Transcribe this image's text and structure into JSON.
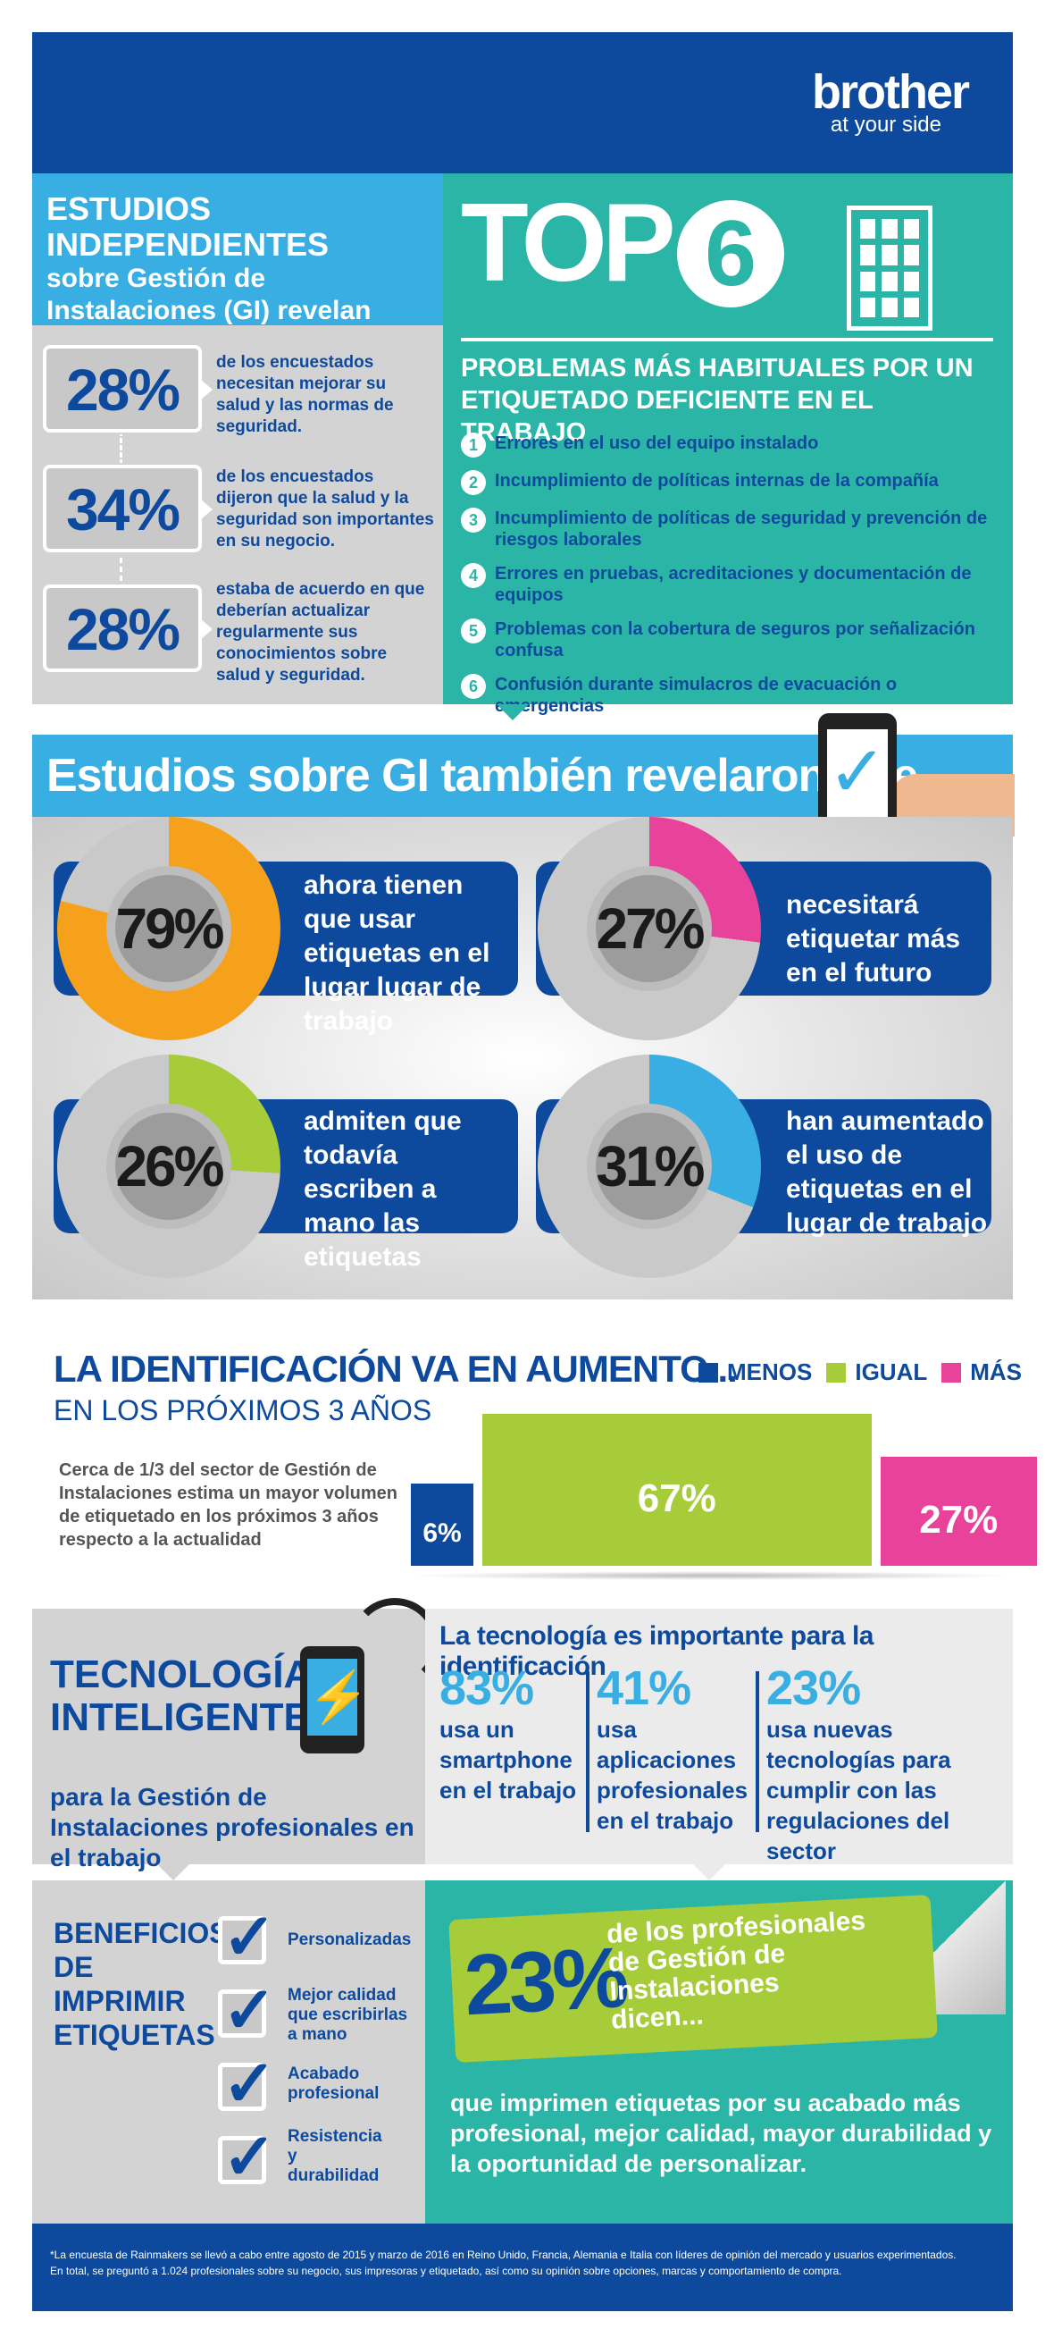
{
  "header": {
    "brand": "brother",
    "tagline": "at your side"
  },
  "studies": {
    "title_line1": "ESTUDIOS INDEPENDIENTES",
    "title_line2": "sobre Gestión de Instalaciones (GI) revelan que...",
    "stats": [
      {
        "value": "28%",
        "text": "de los encuestados necesitan mejorar su salud y las normas de seguridad."
      },
      {
        "value": "34%",
        "text": "de los encuestados dijeron que la salud y la seguridad son importantes en su negocio."
      },
      {
        "value": "28%",
        "text": "estaba de acuerdo en que deberían actualizar regularmente sus conocimientos sobre salud y seguridad."
      }
    ]
  },
  "top6": {
    "top": "TOP",
    "number": "6",
    "heading": "PROBLEMAS MÁS HABITUALES POR UN ETIQUETADO DEFICIENTE EN EL TRABAJO",
    "items": [
      {
        "n": "1",
        "text": "Errores en el uso del equipo instalado"
      },
      {
        "n": "2",
        "text": "Incumplimiento de políticas internas de la compañía"
      },
      {
        "n": "3",
        "text": "Incumplimiento de políticas de seguridad y prevención de riesgos laborales"
      },
      {
        "n": "4",
        "text": "Errores en pruebas, acreditaciones y documentación de equipos"
      },
      {
        "n": "5",
        "text": "Problemas con la cobertura de seguros por señalización confusa"
      },
      {
        "n": "6",
        "text": "Confusión durante simulacros de evacuación o emergencias"
      }
    ]
  },
  "revealed": {
    "title": "Estudios sobre GI también revelaron que...",
    "items": [
      {
        "value": "79%",
        "pct": 79,
        "color": "#f5a11c",
        "text": "ahora tienen que usar etiquetas en el lugar lugar de trabajo"
      },
      {
        "value": "27%",
        "pct": 27,
        "color": "#e8429a",
        "text": "necesitará etiquetar más en el futuro"
      },
      {
        "value": "26%",
        "pct": 26,
        "color": "#a6cc39",
        "text": "admiten que todavía escriben a mano las etiquetas"
      },
      {
        "value": "31%",
        "pct": 31,
        "color": "#39aee3",
        "text": "han aumentado el uso de etiquetas en el lugar de trabajo"
      }
    ]
  },
  "identification": {
    "title": "LA IDENTIFICACIÓN VA EN AUMENTO...",
    "subtitle": "EN LOS PRÓXIMOS 3 AÑOS",
    "note": "Cerca de 1/3 del sector de Gestión de Instalaciones estima un mayor volumen de etiquetado en los próximos 3 años respecto a la actualidad",
    "legend": [
      {
        "label": "MENOS",
        "color": "#0d4a9e"
      },
      {
        "label": "IGUAL",
        "color": "#a6cc39"
      },
      {
        "label": "MÁS",
        "color": "#e8429a"
      }
    ]
  },
  "chart_data": {
    "type": "bar",
    "categories": [
      "MENOS",
      "IGUAL",
      "MÁS"
    ],
    "values": [
      6,
      67,
      27
    ],
    "labels": [
      "6%",
      "67%",
      "27%"
    ],
    "colors": [
      "#0d4a9e",
      "#a6cc39",
      "#e8429a"
    ]
  },
  "technology": {
    "title_line1": "TECNOLOGÍA",
    "title_line2": "INTELIGENTE",
    "subtitle": "para la Gestión de Instalaciones profesionales en el trabajo",
    "heading": "La tecnología es importante para la identificación",
    "stats": [
      {
        "value": "83%",
        "text": "usa un smartphone en el trabajo"
      },
      {
        "value": "41%",
        "text": "usa aplicaciones profesionales en el trabajo"
      },
      {
        "value": "23%",
        "text": "usa nuevas tecnologías para cumplir con las regulaciones del sector"
      }
    ]
  },
  "benefits": {
    "title": "BENEFICIOS DE IMPRIMIR ETIQUETAS",
    "items": [
      "Personalizadas",
      "Mejor calidad que escribirlas a mano",
      "Acabado profesional",
      "Resistencia y durabilidad"
    ],
    "card_value": "23%",
    "card_text": "de los profesionales de Gestión de Instalaciones dicen...",
    "body": "que imprimen etiquetas por su acabado más profesional, mejor calidad, mayor durabilidad y la oportunidad de personalizar."
  },
  "footer": {
    "line1": "*La encuesta de Rainmakers se llevó a cabo entre agosto de 2015 y marzo de 2016 en Reino Unido, Francia, Alemania e Italia con líderes de opinión del mercado y usuarios experimentados.",
    "line2": "En total, se preguntó a 1.024 profesionales sobre su negocio, sus impresoras y etiquetado, así como su opinión sobre opciones, marcas y comportamiento de compra."
  }
}
